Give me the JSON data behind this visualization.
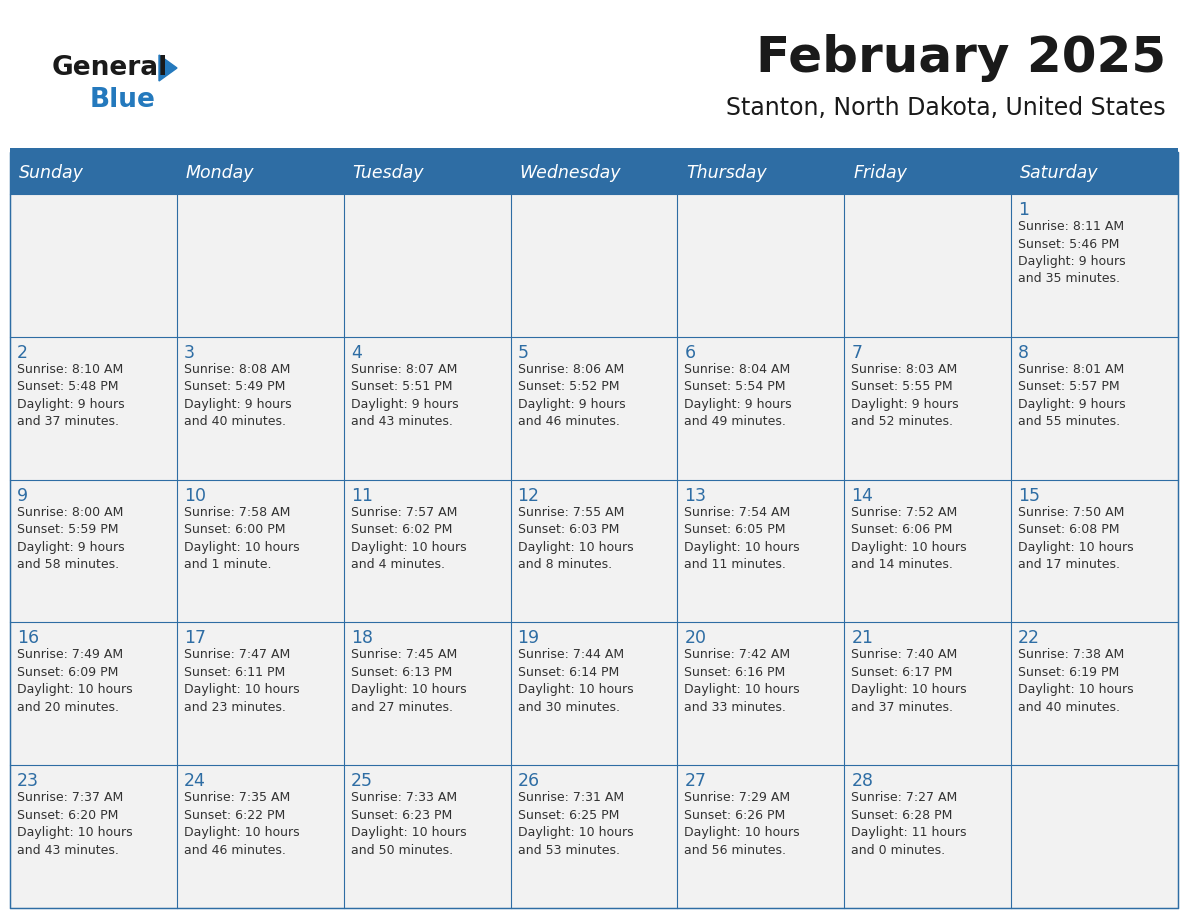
{
  "title": "February 2025",
  "subtitle": "Stanton, North Dakota, United States",
  "header_bg": "#2E6DA4",
  "header_text_color": "#FFFFFF",
  "cell_bg_light": "#F2F2F2",
  "border_color": "#2E6DA4",
  "title_color": "#1a1a1a",
  "subtitle_color": "#1a1a1a",
  "day_number_color": "#2E6DA4",
  "cell_text_color": "#333333",
  "logo_general_color": "#1a1a1a",
  "logo_blue_color": "#2479BD",
  "logo_triangle_color": "#2479BD",
  "day_headers": [
    "Sunday",
    "Monday",
    "Tuesday",
    "Wednesday",
    "Thursday",
    "Friday",
    "Saturday"
  ],
  "calendar": [
    [
      null,
      null,
      null,
      null,
      null,
      null,
      {
        "day": "1",
        "sunrise": "8:11 AM",
        "sunset": "5:46 PM",
        "daylight": "9 hours\nand 35 minutes."
      }
    ],
    [
      {
        "day": "2",
        "sunrise": "8:10 AM",
        "sunset": "5:48 PM",
        "daylight": "9 hours\nand 37 minutes."
      },
      {
        "day": "3",
        "sunrise": "8:08 AM",
        "sunset": "5:49 PM",
        "daylight": "9 hours\nand 40 minutes."
      },
      {
        "day": "4",
        "sunrise": "8:07 AM",
        "sunset": "5:51 PM",
        "daylight": "9 hours\nand 43 minutes."
      },
      {
        "day": "5",
        "sunrise": "8:06 AM",
        "sunset": "5:52 PM",
        "daylight": "9 hours\nand 46 minutes."
      },
      {
        "day": "6",
        "sunrise": "8:04 AM",
        "sunset": "5:54 PM",
        "daylight": "9 hours\nand 49 minutes."
      },
      {
        "day": "7",
        "sunrise": "8:03 AM",
        "sunset": "5:55 PM",
        "daylight": "9 hours\nand 52 minutes."
      },
      {
        "day": "8",
        "sunrise": "8:01 AM",
        "sunset": "5:57 PM",
        "daylight": "9 hours\nand 55 minutes."
      }
    ],
    [
      {
        "day": "9",
        "sunrise": "8:00 AM",
        "sunset": "5:59 PM",
        "daylight": "9 hours\nand 58 minutes."
      },
      {
        "day": "10",
        "sunrise": "7:58 AM",
        "sunset": "6:00 PM",
        "daylight": "10 hours\nand 1 minute."
      },
      {
        "day": "11",
        "sunrise": "7:57 AM",
        "sunset": "6:02 PM",
        "daylight": "10 hours\nand 4 minutes."
      },
      {
        "day": "12",
        "sunrise": "7:55 AM",
        "sunset": "6:03 PM",
        "daylight": "10 hours\nand 8 minutes."
      },
      {
        "day": "13",
        "sunrise": "7:54 AM",
        "sunset": "6:05 PM",
        "daylight": "10 hours\nand 11 minutes."
      },
      {
        "day": "14",
        "sunrise": "7:52 AM",
        "sunset": "6:06 PM",
        "daylight": "10 hours\nand 14 minutes."
      },
      {
        "day": "15",
        "sunrise": "7:50 AM",
        "sunset": "6:08 PM",
        "daylight": "10 hours\nand 17 minutes."
      }
    ],
    [
      {
        "day": "16",
        "sunrise": "7:49 AM",
        "sunset": "6:09 PM",
        "daylight": "10 hours\nand 20 minutes."
      },
      {
        "day": "17",
        "sunrise": "7:47 AM",
        "sunset": "6:11 PM",
        "daylight": "10 hours\nand 23 minutes."
      },
      {
        "day": "18",
        "sunrise": "7:45 AM",
        "sunset": "6:13 PM",
        "daylight": "10 hours\nand 27 minutes."
      },
      {
        "day": "19",
        "sunrise": "7:44 AM",
        "sunset": "6:14 PM",
        "daylight": "10 hours\nand 30 minutes."
      },
      {
        "day": "20",
        "sunrise": "7:42 AM",
        "sunset": "6:16 PM",
        "daylight": "10 hours\nand 33 minutes."
      },
      {
        "day": "21",
        "sunrise": "7:40 AM",
        "sunset": "6:17 PM",
        "daylight": "10 hours\nand 37 minutes."
      },
      {
        "day": "22",
        "sunrise": "7:38 AM",
        "sunset": "6:19 PM",
        "daylight": "10 hours\nand 40 minutes."
      }
    ],
    [
      {
        "day": "23",
        "sunrise": "7:37 AM",
        "sunset": "6:20 PM",
        "daylight": "10 hours\nand 43 minutes."
      },
      {
        "day": "24",
        "sunrise": "7:35 AM",
        "sunset": "6:22 PM",
        "daylight": "10 hours\nand 46 minutes."
      },
      {
        "day": "25",
        "sunrise": "7:33 AM",
        "sunset": "6:23 PM",
        "daylight": "10 hours\nand 50 minutes."
      },
      {
        "day": "26",
        "sunrise": "7:31 AM",
        "sunset": "6:25 PM",
        "daylight": "10 hours\nand 53 minutes."
      },
      {
        "day": "27",
        "sunrise": "7:29 AM",
        "sunset": "6:26 PM",
        "daylight": "10 hours\nand 56 minutes."
      },
      {
        "day": "28",
        "sunrise": "7:27 AM",
        "sunset": "6:28 PM",
        "daylight": "11 hours\nand 0 minutes."
      },
      null
    ]
  ]
}
